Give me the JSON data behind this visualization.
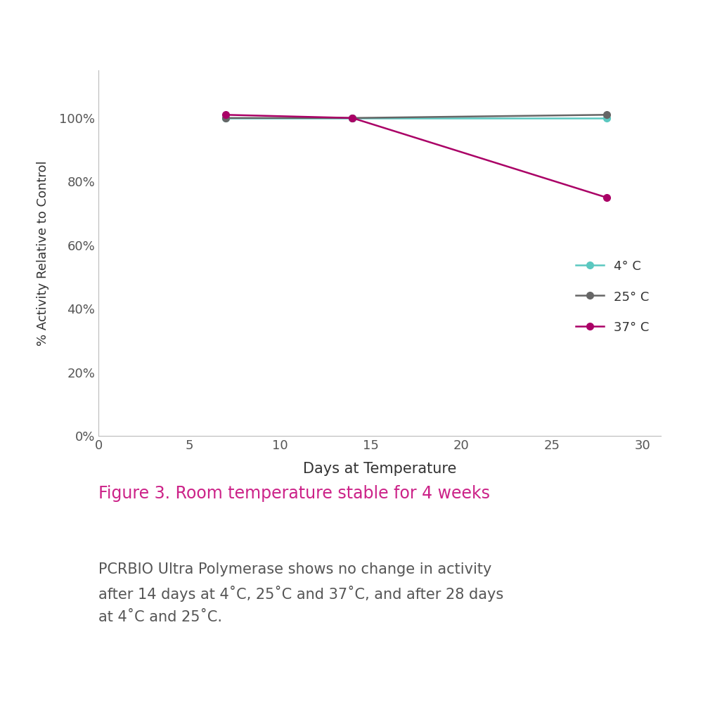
{
  "series": [
    {
      "label": "4° C",
      "color": "#5BC8C0",
      "x": [
        7,
        14,
        28
      ],
      "y": [
        100,
        100,
        100
      ]
    },
    {
      "label": "25° C",
      "color": "#666666",
      "x": [
        7,
        14,
        28
      ],
      "y": [
        100,
        100,
        101
      ]
    },
    {
      "label": "37° C",
      "color": "#AA0066",
      "x": [
        7,
        14,
        28
      ],
      "y": [
        101,
        100,
        75
      ]
    }
  ],
  "xlim": [
    0,
    31
  ],
  "ylim": [
    0,
    115
  ],
  "xticks": [
    0,
    5,
    10,
    15,
    20,
    25,
    30
  ],
  "yticks": [
    0,
    20,
    40,
    60,
    80,
    100
  ],
  "ytick_labels": [
    "0%",
    "20%",
    "40%",
    "60%",
    "80%",
    "100%"
  ],
  "xlabel": "Days at Temperature",
  "ylabel": "% Activity Relative to Control",
  "xlabel_fontsize": 15,
  "ylabel_fontsize": 13,
  "tick_fontsize": 13,
  "legend_fontsize": 13,
  "marker": "o",
  "marker_size": 7,
  "linewidth": 1.8,
  "background_color": "#FFFFFF",
  "figure_caption_title": "Figure 3. Room temperature stable for 4 weeks",
  "figure_caption_title_color": "#CC2288",
  "figure_caption_title_fontsize": 17,
  "figure_caption_body": "PCRBIO Ultra Polymerase shows no change in activity\nafter 14 days at 4˚C, 25˚C and 37˚C, and after 28 days\nat 4˚C and 25˚C.",
  "figure_caption_body_color": "#555555",
  "figure_caption_body_fontsize": 15,
  "spine_color": "#BBBBBB"
}
